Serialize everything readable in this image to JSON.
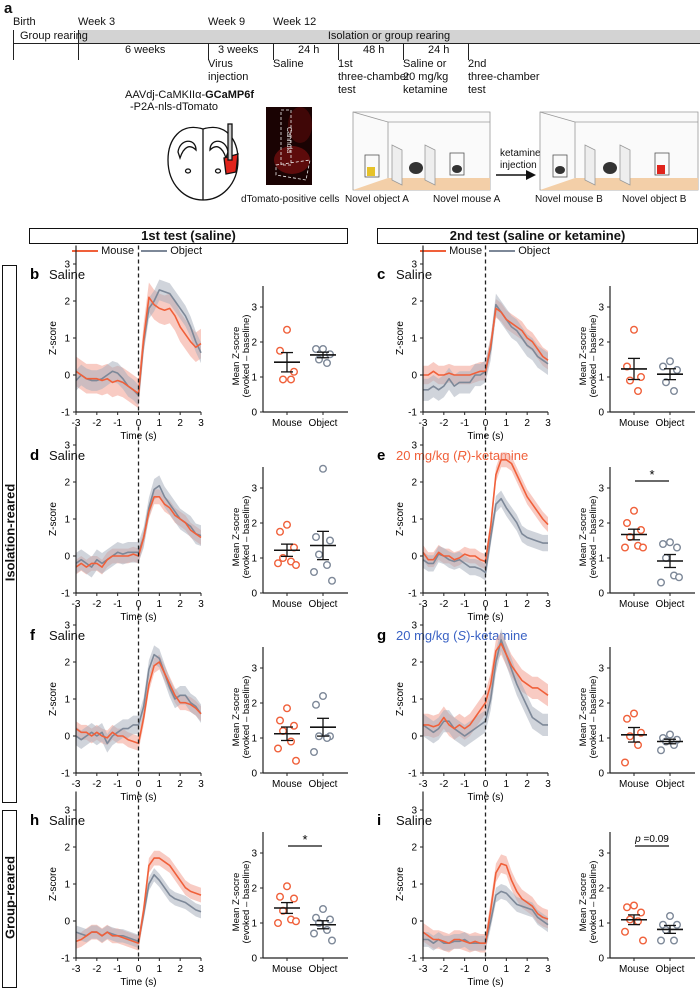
{
  "panel_a": {
    "letter": "a",
    "milestones": [
      "Birth",
      "Week 3",
      "Week 9",
      "Week 12"
    ],
    "bar_left": "Group rearing",
    "bar_right": "Isolation or group  rearing",
    "intervals": [
      "6 weeks",
      "3 weeks",
      "24 h",
      "48 h",
      "24 h"
    ],
    "events": [
      "Virus\ninjection",
      "Saline",
      "1st\nthree-chamber\ntest",
      "Saline or\n20 mg/kg\nketamine",
      "2nd\nthree-chamber\ntest"
    ],
    "construct_line1_prefix": "AAVdj-CaMKIIα-",
    "construct_line1_bold": "GCaMP6f",
    "construct_line2": "-P2A-nls-dTomato",
    "histology_label": "Cannula",
    "histology_caption": "dTomato-positive cells",
    "arrow_label": "ketamine\ninjection",
    "box1_labels": [
      "Novel object A",
      "Novel mouse A"
    ],
    "box2_labels": [
      "Novel mouse B",
      "Novel object B"
    ],
    "colors": {
      "timeline_bar": "#d3d3d3",
      "tomato": "#e0241c",
      "floor": "#f3cfa8"
    }
  },
  "headers": {
    "left": "1st test (saline)",
    "right": "2nd test (saline or ketamine)"
  },
  "legend": {
    "mouse": "Mouse",
    "object": "Object"
  },
  "side_labels": {
    "isolation": "Isolation-reared",
    "group": "Group-reared"
  },
  "axes": {
    "trace_ylabel": "Z-score",
    "trace_xlabel": "Time (s)",
    "dot_ylabel_1": "Mean Z-socre",
    "dot_ylabel_2": "(evoked – baseline)",
    "categories": [
      "Mouse",
      "Object"
    ]
  },
  "colors": {
    "mouse": "#f0603a",
    "object": "#7d8898",
    "mouse_band": "#f2a092",
    "object_band": "#a9b1bd",
    "blue_title": "#3a62c4"
  },
  "chart_data": [
    {
      "panel": "b",
      "type": "line",
      "title": "Saline",
      "title_italic": "",
      "title_suffix": "",
      "title_color": "",
      "xlim": [
        -3,
        3
      ],
      "ylim": [
        -1,
        3
      ],
      "x_step": 0.25,
      "mouse": {
        "mean": [
          0.1,
          0,
          -0.1,
          -0.1,
          -0.1,
          -0.15,
          -0.1,
          -0.2,
          -0.15,
          -0.2,
          -0.3,
          -0.4,
          -0.5,
          1.0,
          2.1,
          1.9,
          1.8,
          1.75,
          1.8,
          1.6,
          1.3,
          1.1,
          0.9,
          0.75,
          0.85
        ],
        "sem": 0.4
      },
      "object": {
        "mean": [
          -0.15,
          0,
          -0.1,
          -0.15,
          -0.15,
          -0.1,
          0,
          0.1,
          0.05,
          -0.1,
          -0.3,
          -0.4,
          -0.55,
          0.9,
          1.8,
          2.0,
          2.3,
          2.25,
          2.2,
          2.0,
          1.8,
          1.6,
          1.3,
          0.9,
          0.6
        ],
        "sem": 0.28
      },
      "dots": {
        "mouse": [
          2.35,
          1.75,
          1.15,
          0.93,
          0.93
        ],
        "object": [
          1.8,
          1.8,
          1.65,
          1.5,
          1.4
        ]
      },
      "sig": "",
      "sig_italic": ""
    },
    {
      "panel": "c",
      "type": "line",
      "title": "Saline",
      "title_italic": "",
      "title_suffix": "",
      "title_color": "",
      "xlim": [
        -3,
        3
      ],
      "ylim": [
        -1,
        3
      ],
      "x_step": 0.25,
      "mouse": {
        "mean": [
          0,
          0,
          0.1,
          0,
          0,
          0.05,
          0,
          0,
          0,
          0,
          0.05,
          0.1,
          0.1,
          0.8,
          1.8,
          1.7,
          1.5,
          1.4,
          1.3,
          1.2,
          1.0,
          0.9,
          0.7,
          0.5,
          0.4
        ],
        "sem": 0.25
      },
      "object": {
        "mean": [
          -0.4,
          -0.4,
          -0.3,
          -0.4,
          -0.3,
          -0.1,
          -0.3,
          -0.2,
          -0.2,
          -0.2,
          0,
          0,
          0.1,
          0.7,
          1.9,
          1.7,
          1.5,
          1.3,
          1.2,
          1.0,
          0.8,
          0.7,
          0.5,
          0.4,
          0.3
        ],
        "sem": 0.3
      },
      "dots": {
        "mouse": [
          2.35,
          1.3,
          1.0,
          0.9,
          0.6
        ],
        "object": [
          1.45,
          1.3,
          1.2,
          0.85,
          0.6
        ]
      },
      "sig": "",
      "sig_italic": ""
    },
    {
      "panel": "d",
      "type": "line",
      "title": "Saline",
      "title_italic": "",
      "title_suffix": "",
      "title_color": "",
      "xlim": [
        -3,
        3
      ],
      "ylim": [
        -1,
        3
      ],
      "x_step": 0.25,
      "mouse": {
        "mean": [
          -0.3,
          -0.2,
          -0.3,
          -0.2,
          -0.2,
          -0.3,
          -0.1,
          0,
          0,
          0,
          0,
          0.05,
          0,
          0.5,
          1.2,
          1.6,
          1.6,
          1.4,
          1.3,
          1.1,
          1.0,
          0.9,
          0.7,
          0.6,
          0.5
        ],
        "sem": 0.2
      },
      "object": {
        "mean": [
          -0.2,
          -0.1,
          -0.2,
          -0.3,
          -0.1,
          -0.2,
          -0.1,
          0,
          0.1,
          0.05,
          0.1,
          0.1,
          0.1,
          0.5,
          1.3,
          1.8,
          1.9,
          1.6,
          1.4,
          1.2,
          1.0,
          0.9,
          0.8,
          0.6,
          0.55
        ],
        "sem": 0.28
      },
      "dots": {
        "mouse": [
          1.95,
          1.75,
          1.3,
          1.0,
          0.9,
          0.85,
          0.8
        ],
        "object": [
          3.55,
          1.6,
          1.5,
          1.1,
          0.8,
          0.6,
          0.35
        ]
      },
      "sig": "",
      "sig_italic": ""
    },
    {
      "panel": "e",
      "type": "line",
      "title": "20 mg/kg (",
      "title_italic": "R",
      "title_suffix": ")-ketamine",
      "title_color": "mouse",
      "xlim": [
        -3,
        3
      ],
      "ylim": [
        -1,
        3
      ],
      "x_step": 0.25,
      "mouse": {
        "mean": [
          0.1,
          -0.1,
          -0.1,
          0.1,
          0,
          0,
          -0.1,
          -0.05,
          0.05,
          0,
          0,
          -0.1,
          -0.15,
          0.8,
          2.2,
          2.6,
          2.6,
          2.5,
          2.2,
          1.9,
          1.6,
          1.4,
          1.2,
          1.0,
          0.85
        ],
        "sem": 0.2
      },
      "object": {
        "mean": [
          -0.1,
          -0.2,
          -0.2,
          0.05,
          0,
          -0.1,
          -0.15,
          -0.1,
          -0.2,
          -0.3,
          -0.3,
          -0.35,
          -0.45,
          0.5,
          1.4,
          1.55,
          1.3,
          1.1,
          0.9,
          0.6,
          0.5,
          0.45,
          0.4,
          0.35,
          0.35
        ],
        "sem": 0.22
      },
      "dots": {
        "mouse": [
          2.35,
          2.0,
          1.8,
          1.6,
          1.35,
          1.3,
          1.3
        ],
        "object": [
          1.45,
          1.4,
          1.3,
          1.0,
          0.5,
          0.3,
          0.45
        ]
      },
      "sig": "*",
      "sig_italic": ""
    },
    {
      "panel": "f",
      "type": "line",
      "title": "Saline",
      "title_italic": "",
      "title_suffix": "",
      "title_color": "",
      "xlim": [
        -3,
        3
      ],
      "ylim": [
        -1,
        3
      ],
      "x_step": 0.25,
      "mouse": {
        "mean": [
          0.2,
          0.1,
          0.1,
          0,
          0.1,
          0,
          -0.05,
          0.1,
          0,
          0,
          -0.1,
          -0.15,
          -0.2,
          0.5,
          1.4,
          1.9,
          2.0,
          1.7,
          1.4,
          1.1,
          0.9,
          0.9,
          0.85,
          0.75,
          0.6
        ],
        "sem": 0.2
      },
      "object": {
        "mean": [
          0,
          -0.1,
          0,
          0.1,
          0,
          0.1,
          -0.2,
          0,
          0.1,
          0.2,
          0.2,
          0.3,
          0.3,
          0.8,
          1.8,
          2.2,
          2.1,
          1.7,
          1.3,
          1.0,
          1.1,
          1.1,
          0.9,
          0.8,
          0.6
        ],
        "sem": 0.25
      },
      "dots": {
        "mouse": [
          1.85,
          1.5,
          1.35,
          1.2,
          0.9,
          0.7,
          0.35
        ],
        "object": [
          2.2,
          1.95,
          1.05,
          1.05,
          1.0,
          0.6
        ]
      },
      "sig": "",
      "sig_italic": ""
    },
    {
      "panel": "g",
      "type": "line",
      "title": "20 mg/kg (",
      "title_italic": "S",
      "title_suffix": ")-ketamine",
      "title_color": "blue_title",
      "xlim": [
        -3,
        3
      ],
      "ylim": [
        -1,
        3
      ],
      "x_step": 0.25,
      "mouse": {
        "mean": [
          0.3,
          0.3,
          0.25,
          0.3,
          0.5,
          0.3,
          0.2,
          0.3,
          0.2,
          0.3,
          0.5,
          0.7,
          0.9,
          1.4,
          2.3,
          2.5,
          2.2,
          1.9,
          1.7,
          1.5,
          1.4,
          1.3,
          1.3,
          1.2,
          1.1
        ],
        "sem": 0.3
      },
      "object": {
        "mean": [
          0.3,
          0.2,
          0.1,
          0.2,
          0.4,
          0.4,
          0.2,
          0.1,
          0,
          0.1,
          0.2,
          0.3,
          0.4,
          1.0,
          2.0,
          2.6,
          2.2,
          1.8,
          1.4,
          1.1,
          0.8,
          0.5,
          0.4,
          0.3,
          0.3
        ],
        "sem": 0.3
      },
      "dots": {
        "mouse": [
          1.7,
          1.55,
          1.15,
          1.05,
          0.8,
          0.3
        ],
        "object": [
          1.1,
          1.0,
          0.95,
          0.9,
          0.8,
          0.65
        ]
      },
      "sig": "",
      "sig_italic": ""
    },
    {
      "panel": "h",
      "type": "line",
      "title": "Saline",
      "title_italic": "",
      "title_suffix": "",
      "title_color": "",
      "xlim": [
        -3,
        3
      ],
      "ylim": [
        -1,
        3
      ],
      "x_step": 0.25,
      "mouse": {
        "mean": [
          -0.55,
          -0.5,
          -0.4,
          -0.3,
          -0.3,
          -0.4,
          -0.3,
          -0.4,
          -0.4,
          -0.45,
          -0.5,
          -0.55,
          -0.6,
          0.3,
          1.5,
          1.7,
          1.7,
          1.6,
          1.5,
          1.3,
          1.1,
          0.9,
          0.8,
          0.75,
          0.7
        ],
        "sem": 0.2
      },
      "object": {
        "mean": [
          -0.3,
          -0.35,
          -0.4,
          -0.3,
          -0.3,
          -0.4,
          -0.3,
          -0.35,
          -0.4,
          -0.4,
          -0.45,
          -0.5,
          -0.55,
          0.2,
          1.0,
          1.25,
          1.1,
          0.9,
          0.7,
          0.6,
          0.55,
          0.5,
          0.4,
          0.3,
          0.25
        ],
        "sem": 0.18
      },
      "dots": {
        "mouse": [
          2.05,
          1.75,
          1.7,
          1.35,
          1.1,
          1.0,
          1.05
        ],
        "object": [
          1.4,
          1.15,
          1.1,
          1.0,
          0.8,
          0.7,
          0.5
        ]
      },
      "sig": "*",
      "sig_italic": ""
    },
    {
      "panel": "i",
      "type": "line",
      "title": "Saline",
      "title_italic": "",
      "title_suffix": "",
      "title_color": "",
      "xlim": [
        -3,
        3
      ],
      "ylim": [
        -1,
        3
      ],
      "x_step": 0.25,
      "mouse": {
        "mean": [
          -0.3,
          -0.4,
          -0.5,
          -0.5,
          -0.55,
          -0.6,
          -0.5,
          -0.5,
          -0.55,
          -0.6,
          -0.55,
          -0.6,
          -0.6,
          0.3,
          1.3,
          1.55,
          1.5,
          1.1,
          0.8,
          0.6,
          0.5,
          0.4,
          0.2,
          0.1,
          0.05
        ],
        "sem": 0.25
      },
      "object": {
        "mean": [
          -0.5,
          -0.5,
          -0.6,
          -0.5,
          -0.6,
          -0.6,
          -0.55,
          -0.55,
          -0.5,
          -0.6,
          -0.6,
          -0.6,
          -0.6,
          0.0,
          0.7,
          0.8,
          0.75,
          0.6,
          0.45,
          0.4,
          0.35,
          0.3,
          0.1,
          0.0,
          -0.1
        ],
        "sem": 0.2
      },
      "dots": {
        "mouse": [
          1.5,
          1.45,
          1.3,
          1.1,
          1.05,
          0.75,
          0.5
        ],
        "object": [
          1.2,
          0.95,
          0.95,
          0.8,
          0.5,
          0.5
        ]
      },
      "sig": " =0.09",
      "sig_italic": "p"
    }
  ]
}
